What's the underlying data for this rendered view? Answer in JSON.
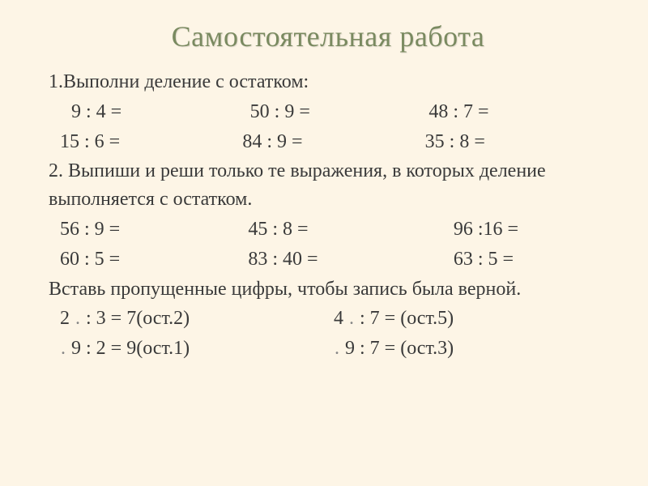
{
  "title": "Самостоятельная  работа",
  "task1": {
    "prompt": "1.Выполни деление с остатком:",
    "rows": [
      [
        "9 : 4 =",
        "50 : 9 =",
        "48 : 7 ="
      ],
      [
        "15 : 6 =",
        "84 : 9 =",
        "35 : 8 ="
      ]
    ]
  },
  "task2": {
    "prompt": "2. Выпиши и реши только те выражения, в которых деление выполняется с остатком.",
    "rows": [
      [
        "56 : 9 =",
        "45 : 8 =",
        "96 :16 ="
      ],
      [
        "60 : 5 =",
        "83 : 40 =",
        "63 : 5 ="
      ]
    ]
  },
  "task3": {
    "prompt": "Вставь пропущенные цифры, чтобы запись была верной.",
    "rows": [
      {
        "a_pre": "2 ",
        "a_mid": ".",
        "a_post": " : 3 =  7(ост.2)",
        "b_pre": "4 ",
        "b_mid": ".",
        "b_post": " : 7 =     (ост.5)"
      },
      {
        "a_pre": "",
        "a_mid": ".",
        "a_post": " 9 : 2 =  9(ост.1)",
        "b_pre": "",
        "b_mid": ".",
        "b_post": "  9 : 7 =  (ост.3)"
      }
    ]
  },
  "colors": {
    "background": "#fdf5e6",
    "title": "#7a8a60",
    "text": "#3a3a3a",
    "dot": "#888888"
  },
  "fonts": {
    "title_size": 36,
    "body_size": 24,
    "family": "Times New Roman"
  }
}
